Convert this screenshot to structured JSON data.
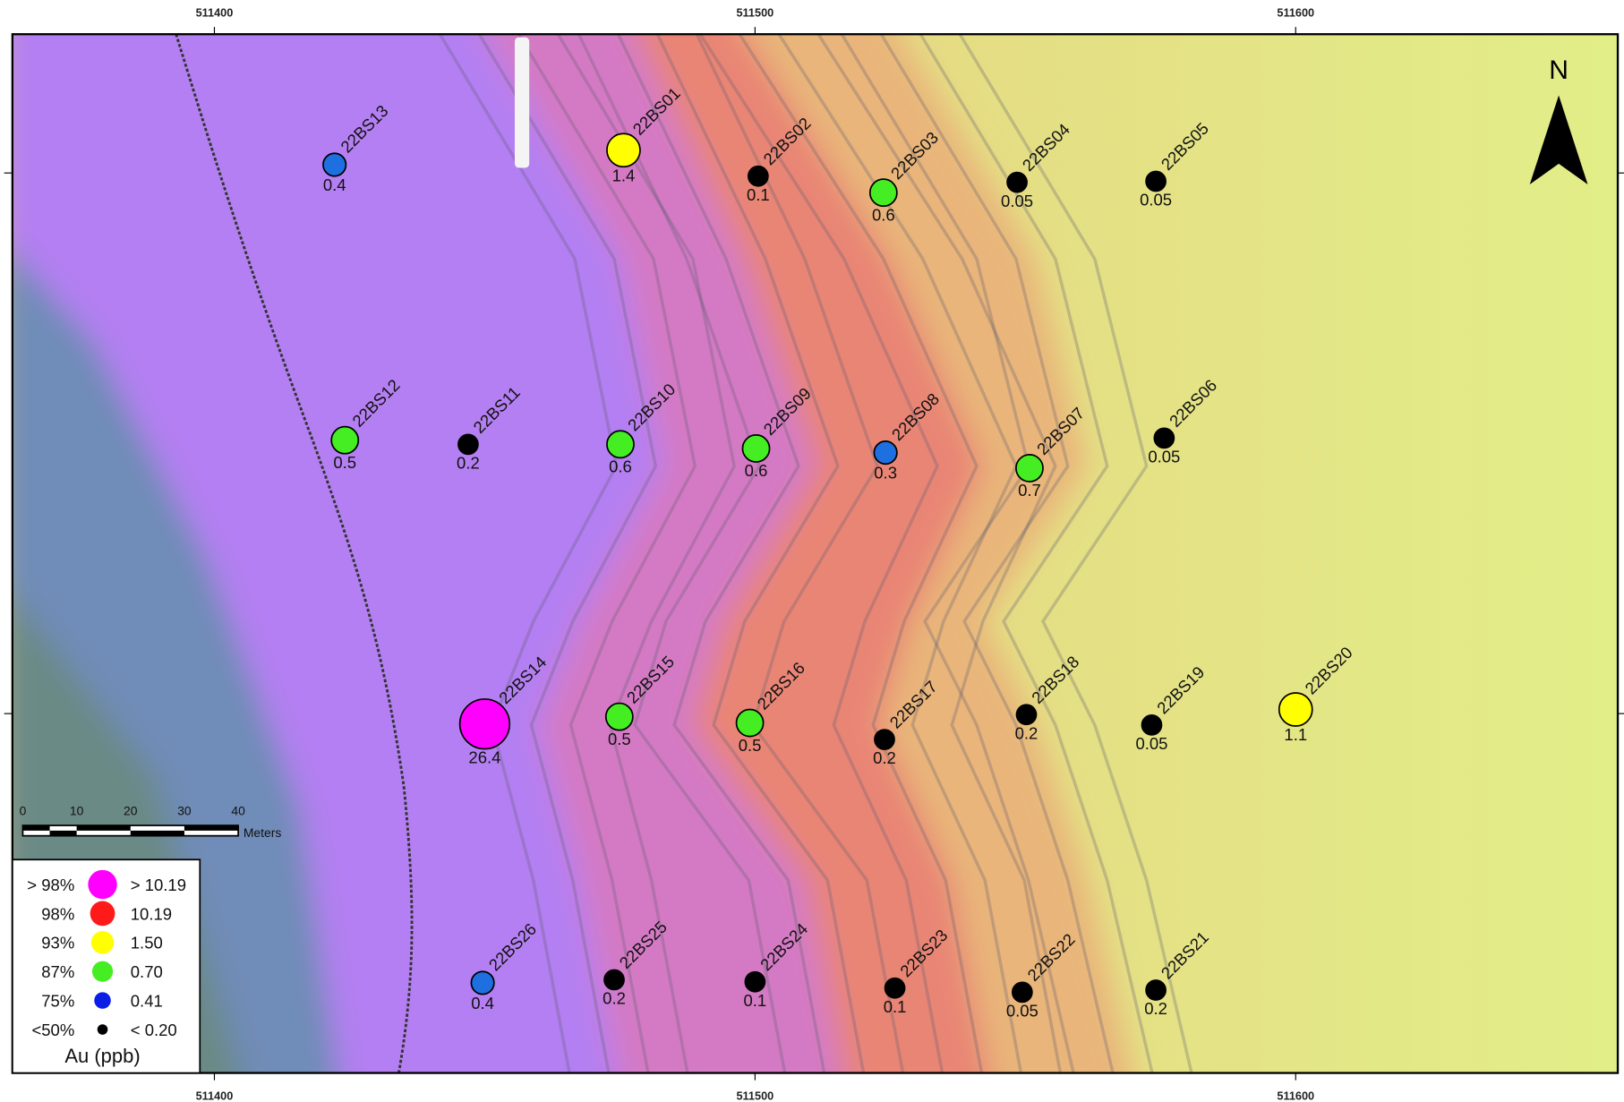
{
  "map": {
    "top_ticks": [
      "511400",
      "511500",
      "511600"
    ],
    "bottom_ticks": [
      "511400",
      "511500",
      "511600"
    ],
    "north": "N",
    "scale_bar": {
      "ticks": [
        "0",
        "10",
        "20",
        "30",
        "40"
      ],
      "unit": "Meters"
    },
    "samples": [
      {
        "id": "22BS13",
        "value": "0.4",
        "color": "#1e6fe0"
      },
      {
        "id": "22BS01",
        "value": "1.4",
        "color": "#ffff00"
      },
      {
        "id": "22BS02",
        "value": "0.1",
        "color": "#000000"
      },
      {
        "id": "22BS03",
        "value": "0.6",
        "color": "#44ee22"
      },
      {
        "id": "22BS04",
        "value": "0.05",
        "color": "#000000"
      },
      {
        "id": "22BS05",
        "value": "0.05",
        "color": "#000000"
      },
      {
        "id": "22BS12",
        "value": "0.5",
        "color": "#44ee22"
      },
      {
        "id": "22BS11",
        "value": "0.2",
        "color": "#000000"
      },
      {
        "id": "22BS10",
        "value": "0.6",
        "color": "#44ee22"
      },
      {
        "id": "22BS09",
        "value": "0.6",
        "color": "#44ee22"
      },
      {
        "id": "22BS08",
        "value": "0.3",
        "color": "#1e6fe0"
      },
      {
        "id": "22BS07",
        "value": "0.7",
        "color": "#44ee22"
      },
      {
        "id": "22BS06",
        "value": "0.05",
        "color": "#000000"
      },
      {
        "id": "22BS14",
        "value": "26.4",
        "color": "#ff00ff"
      },
      {
        "id": "22BS15",
        "value": "0.5",
        "color": "#44ee22"
      },
      {
        "id": "22BS16",
        "value": "0.5",
        "color": "#44ee22"
      },
      {
        "id": "22BS17",
        "value": "0.2",
        "color": "#000000"
      },
      {
        "id": "22BS18",
        "value": "0.2",
        "color": "#000000"
      },
      {
        "id": "22BS19",
        "value": "0.05",
        "color": "#000000"
      },
      {
        "id": "22BS20",
        "value": "1.1",
        "color": "#ffff00"
      },
      {
        "id": "22BS26",
        "value": "0.4",
        "color": "#1e6fe0"
      },
      {
        "id": "22BS25",
        "value": "0.2",
        "color": "#000000"
      },
      {
        "id": "22BS24",
        "value": "0.1",
        "color": "#000000"
      },
      {
        "id": "22BS23",
        "value": "0.1",
        "color": "#000000"
      },
      {
        "id": "22BS22",
        "value": "0.05",
        "color": "#000000"
      },
      {
        "id": "22BS21",
        "value": "0.2",
        "color": "#000000"
      }
    ],
    "legend": {
      "title": "Au (ppb)",
      "entries": [
        {
          "percentile": "> 98%",
          "value": "> 10.19",
          "color": "#ff00ff"
        },
        {
          "percentile": "98%",
          "value": "10.19",
          "color": "#ff1a1a"
        },
        {
          "percentile": "93%",
          "value": "1.50",
          "color": "#ffff00"
        },
        {
          "percentile": "87%",
          "value": "0.70",
          "color": "#44ee22"
        },
        {
          "percentile": "75%",
          "value": "0.41",
          "color": "#0a1ee6"
        },
        {
          "percentile": "<50%",
          "value": "< 0.20",
          "color": "#000000"
        }
      ]
    }
  }
}
